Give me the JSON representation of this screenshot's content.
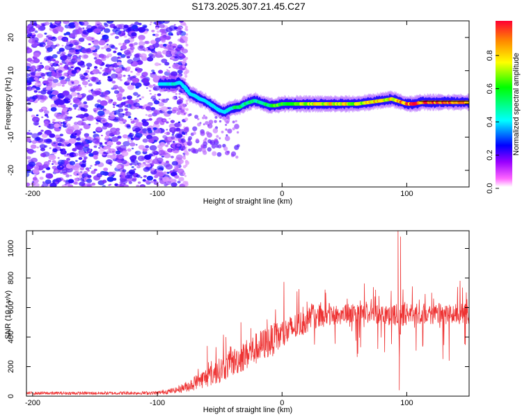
{
  "figure": {
    "title": "S173.2025.307.21.45.C27"
  },
  "chart_data": [
    {
      "type": "heatmap",
      "id": "spectrogram",
      "title": "",
      "xlabel": "Height of straight line (km)",
      "ylabel": "Frequency (Hz)",
      "xlim": [
        -205,
        150
      ],
      "ylim": [
        -25,
        25
      ],
      "x_ticks": [
        -200,
        -100,
        0,
        100
      ],
      "y_ticks": [
        -20,
        -10,
        0,
        10,
        20
      ],
      "colorbar": {
        "label": "Normalized spectral amplitude",
        "range": [
          0,
          1
        ],
        "ticks": [
          0,
          0.2,
          0.4,
          0.6,
          0.8
        ],
        "tick_labels": [
          "0.0",
          "0.2",
          "0.4",
          "0.6",
          "0.8"
        ],
        "colors": [
          "#ffffff",
          "#ff00ff",
          "#0000ff",
          "#00ffff",
          "#00ff00",
          "#ffff00",
          "#ff0000"
        ]
      },
      "noise_region_x": [
        -205,
        -78
      ],
      "carrier_line_y": 0.8,
      "ridge": {
        "x": [
          -98,
          -92,
          -86,
          -82,
          -78,
          -74,
          -70,
          -66,
          -62,
          -58,
          -54,
          -50,
          -46,
          -42,
          -38,
          -34,
          -30,
          -26,
          -22,
          -18,
          -14,
          -10,
          -5,
          0,
          10,
          20,
          30,
          40,
          50,
          60,
          70,
          80,
          88,
          92,
          96,
          100,
          106,
          112,
          120,
          130,
          140,
          150
        ],
        "y": [
          6,
          6,
          6,
          6.5,
          5,
          3,
          2.5,
          1.5,
          1,
          0,
          -1,
          -2,
          -2.5,
          -1.5,
          -1,
          -1,
          0,
          0.5,
          1,
          0.5,
          0,
          -0.5,
          -0.5,
          0,
          0,
          0,
          0,
          0,
          0,
          0,
          0.5,
          1,
          1.5,
          1,
          0.5,
          0,
          0,
          0.5,
          0.5,
          0.5,
          0.5,
          0.5
        ],
        "amplitude": [
          0.25,
          0.45,
          0.4,
          0.35,
          0.3,
          0.2,
          0.25,
          0.3,
          0.3,
          0.35,
          0.3,
          0.25,
          0.35,
          0.4,
          0.5,
          0.55,
          0.5,
          0.5,
          0.45,
          0.5,
          0.55,
          0.55,
          0.6,
          0.6,
          0.65,
          0.7,
          0.75,
          0.75,
          0.75,
          0.7,
          0.75,
          0.8,
          0.75,
          0.8,
          0.85,
          0.9,
          0.9,
          0.9,
          0.9,
          0.9,
          0.9,
          0.9
        ]
      }
    },
    {
      "type": "line",
      "id": "snr",
      "title": "",
      "xlabel": "Height of straight line (km)",
      "ylabel": "SNR (10 * v/v)",
      "xlim": [
        -205,
        150
      ],
      "ylim": [
        0,
        1120
      ],
      "x_ticks": [
        -200,
        -100,
        0,
        100
      ],
      "y_ticks": [
        0,
        200,
        400,
        600,
        800,
        1000
      ],
      "line_color": "#ee3333",
      "envelope": {
        "x": [
          -205,
          -150,
          -100,
          -85,
          -75,
          -65,
          -55,
          -45,
          -35,
          -25,
          -15,
          -5,
          5,
          15,
          25,
          35,
          50,
          70,
          85,
          92,
          95,
          98,
          105,
          120,
          140,
          150
        ],
        "baseline": [
          20,
          20,
          22,
          40,
          70,
          110,
          150,
          200,
          250,
          300,
          350,
          390,
          440,
          490,
          540,
          550,
          555,
          560,
          560,
          540,
          500,
          560,
          560,
          555,
          555,
          555
        ],
        "spread": [
          10,
          10,
          12,
          20,
          40,
          60,
          80,
          90,
          100,
          110,
          110,
          110,
          100,
          90,
          80,
          80,
          70,
          70,
          70,
          80,
          100,
          80,
          70,
          70,
          70,
          70
        ]
      },
      "spikes": [
        {
          "x": -60,
          "y": 340
        },
        {
          "x": -45,
          "y": 400
        },
        {
          "x": -33,
          "y": 500
        },
        {
          "x": -25,
          "y": 460
        },
        {
          "x": -12,
          "y": 520
        },
        {
          "x": 20,
          "y": 640
        },
        {
          "x": 35,
          "y": 700
        },
        {
          "x": 75,
          "y": 720
        },
        {
          "x": 93,
          "y": 1120
        },
        {
          "x": 95,
          "y": 1080
        },
        {
          "x": 94,
          "y": 40
        },
        {
          "x": 120,
          "y": 700
        }
      ]
    }
  ]
}
